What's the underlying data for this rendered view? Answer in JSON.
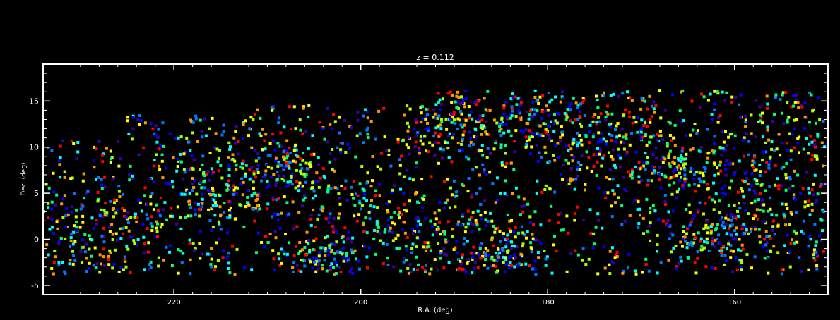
{
  "chart_data": {
    "type": "scatter",
    "title": "z = 0.112",
    "xlabel": "R.A. (deg)",
    "ylabel": "Dec. (deg)",
    "xlim": [
      234,
      150
    ],
    "ylim": [
      -6,
      19
    ],
    "xticks": [
      220,
      200,
      180,
      160
    ],
    "yticks": [
      -5,
      0,
      5,
      10,
      15
    ],
    "xtick_labels": [
      "220",
      "200",
      "180",
      "160"
    ],
    "ytick_labels": [
      "-5",
      "0",
      "5",
      "10",
      "15"
    ],
    "background": "#000000",
    "axis_color": "#ffffff",
    "color_scale": [
      "#3a00a8",
      "#0000ff",
      "#0078ff",
      "#00ffff",
      "#00ff78",
      "#aaff00",
      "#ffff00",
      "#ff9900",
      "#ff0000"
    ],
    "description_of_points": "dense galaxy field, R.A. 150-234, Dec. -4 to 16",
    "point_count": 3200,
    "clusters": [
      {
        "ra": 215,
        "dec": 5.5,
        "spread": 3.0
      },
      {
        "ra": 208,
        "dec": 7.5,
        "spread": 2.5
      },
      {
        "ra": 196,
        "dec": 2.0,
        "spread": 3.0
      },
      {
        "ra": 181,
        "dec": 13.5,
        "spread": 2.2
      },
      {
        "ra": 174,
        "dec": 11.0,
        "spread": 2.5
      },
      {
        "ra": 185,
        "dec": -1.5,
        "spread": 2.0
      },
      {
        "ra": 166,
        "dec": 8.5,
        "spread": 2.5
      },
      {
        "ra": 158,
        "dec": 7.0,
        "spread": 2.8
      },
      {
        "ra": 162,
        "dec": 1.0,
        "spread": 2.0
      },
      {
        "ra": 228,
        "dec": 1.5,
        "spread": 2.5
      },
      {
        "ra": 204,
        "dec": -2.5,
        "spread": 2.0
      },
      {
        "ra": 190,
        "dec": 12.5,
        "spread": 2.0
      }
    ]
  }
}
